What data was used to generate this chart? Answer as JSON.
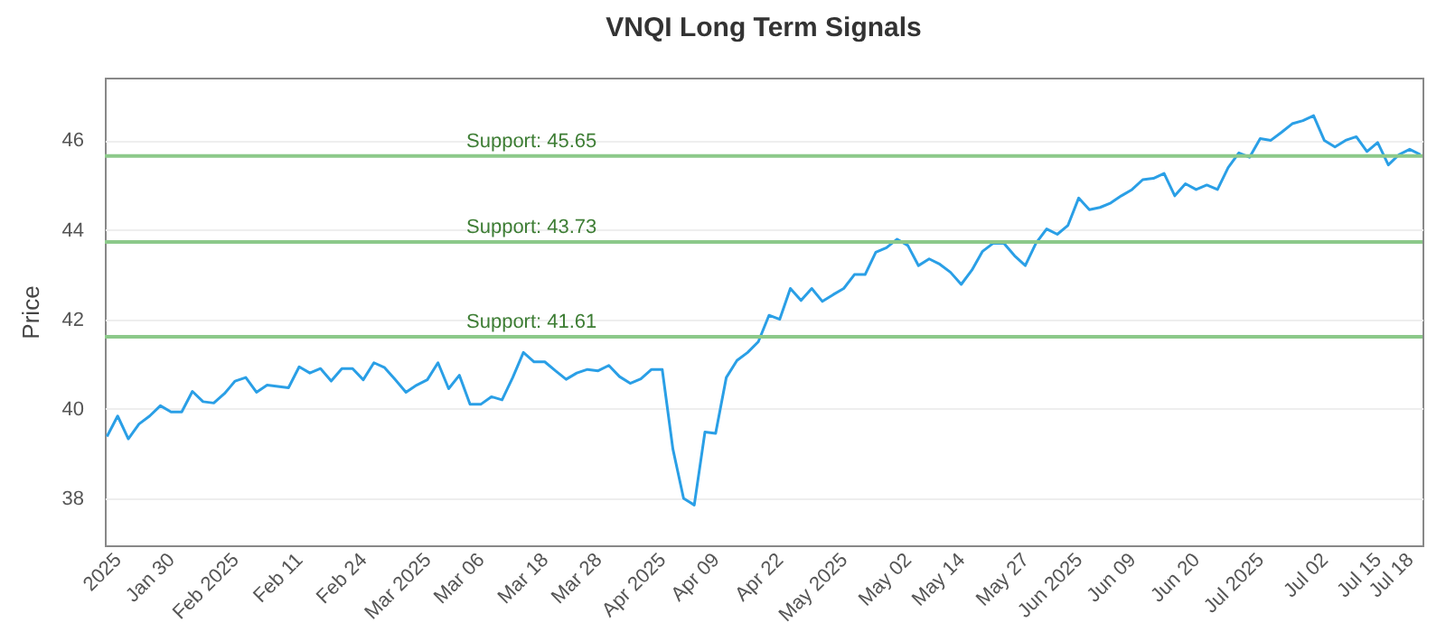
{
  "chart_data": {
    "type": "line",
    "title": "VNQI Long Term Signals",
    "ylabel": "Price",
    "categories": [
      null,
      "2025",
      null,
      null,
      null,
      null,
      "Jan 30",
      null,
      null,
      null,
      null,
      null,
      "Feb 2025",
      null,
      null,
      null,
      null,
      null,
      "Feb 11",
      null,
      null,
      null,
      null,
      null,
      "Feb 24",
      null,
      null,
      null,
      null,
      null,
      "Mar 2025",
      null,
      null,
      null,
      null,
      "Mar 06",
      null,
      null,
      null,
      null,
      null,
      "Mar 18",
      null,
      null,
      null,
      null,
      "Mar 28",
      null,
      null,
      null,
      null,
      null,
      "Apr 2025",
      null,
      null,
      null,
      null,
      "Apr 09",
      null,
      null,
      null,
      null,
      null,
      "Apr 22",
      null,
      null,
      null,
      null,
      null,
      "May 2025",
      null,
      null,
      null,
      null,
      null,
      "May 02",
      null,
      null,
      null,
      null,
      "May 14",
      null,
      null,
      null,
      null,
      null,
      "May 27",
      null,
      null,
      null,
      null,
      "Jun 2025",
      null,
      null,
      null,
      null,
      "Jun 09",
      null,
      null,
      null,
      null,
      null,
      "Jun 20",
      null,
      null,
      null,
      null,
      null,
      "Jul 2025",
      null,
      null,
      null,
      null,
      null,
      "Jul 02",
      null,
      null,
      null,
      null,
      "Jul 15",
      null,
      null,
      "Jul 18",
      null
    ],
    "series": [
      {
        "color": "#2a9fe6",
        "values": [
          39.38,
          39.84,
          39.33,
          39.66,
          39.84,
          40.07,
          39.93,
          39.93,
          40.39,
          40.16,
          40.13,
          40.34,
          40.62,
          40.7,
          40.37,
          40.53,
          40.5,
          40.47,
          40.94,
          40.8,
          40.9,
          40.62,
          40.9,
          40.9,
          40.65,
          41.03,
          40.92,
          40.65,
          40.37,
          40.53,
          40.65,
          41.03,
          40.45,
          40.75,
          40.1,
          40.1,
          40.27,
          40.2,
          40.7,
          41.26,
          41.05,
          41.05,
          40.85,
          40.66,
          40.8,
          40.88,
          40.85,
          40.97,
          40.72,
          40.57,
          40.67,
          40.88,
          40.88,
          39.1,
          38.0,
          37.85,
          39.48,
          39.45,
          40.7,
          41.08,
          41.26,
          41.5,
          42.09,
          42.0,
          42.69,
          42.42,
          42.69,
          42.4,
          42.55,
          42.69,
          43.0,
          43.0,
          43.5,
          43.6,
          43.79,
          43.65,
          43.2,
          43.35,
          43.23,
          43.05,
          42.78,
          43.1,
          43.52,
          43.7,
          43.7,
          43.42,
          43.2,
          43.7,
          44.02,
          43.9,
          44.1,
          44.71,
          44.45,
          44.5,
          44.6,
          44.76,
          44.9,
          45.12,
          45.15,
          45.26,
          44.76,
          45.03,
          44.9,
          45.0,
          44.9,
          45.39,
          45.72,
          45.62,
          46.04,
          46.0,
          46.18,
          46.37,
          46.44,
          46.55,
          46.0,
          45.85,
          46.0,
          46.08,
          45.75,
          45.95,
          45.45,
          45.68,
          45.8,
          45.68
        ]
      }
    ],
    "ylim": [
      36.95,
      47.4
    ],
    "yticks": [
      38,
      40,
      42,
      44,
      46
    ],
    "grid": "y",
    "ref_lines": [
      {
        "axis": "y",
        "value": 45.65,
        "label": "Support: 45.65",
        "color": "#8cc98a"
      },
      {
        "axis": "y",
        "value": 43.73,
        "label": "Support: 43.73",
        "color": "#8cc98a"
      },
      {
        "axis": "y",
        "value": 41.61,
        "label": "Support: 41.61",
        "color": "#8cc98a"
      }
    ]
  }
}
